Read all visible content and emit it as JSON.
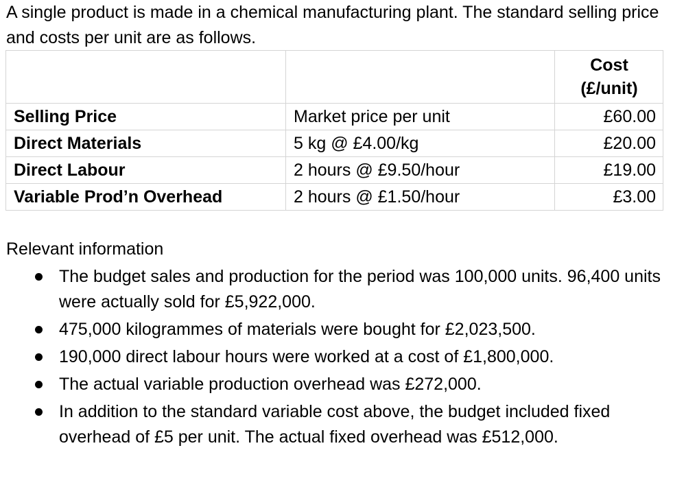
{
  "intro": "A single product is made in a chemical manufacturing plant.  The standard selling price and costs per unit are as follows.",
  "table": {
    "header": {
      "item": "",
      "description": "",
      "cost_line1": "Cost",
      "cost_line2": "(£/unit)"
    },
    "rows": [
      {
        "item": "Selling Price",
        "description": "Market price per unit",
        "cost": "£60.00"
      },
      {
        "item": "Direct Materials",
        "description": "5 kg @ £4.00/kg",
        "cost": "£20.00"
      },
      {
        "item": "Direct Labour",
        "description": "2 hours @ £9.50/hour",
        "cost": "£19.00"
      },
      {
        "item": "Variable Prod’n Overhead",
        "description": "2 hours @ £1.50/hour",
        "cost": "£3.00"
      }
    ]
  },
  "info": {
    "title": "Relevant information",
    "bullets": [
      "The budget sales and production for the period was 100,000 units. 96,400 units were actually sold for £5,922,000.",
      "475,000 kilogrammes of materials were bought for £2,023,500.",
      "190,000 direct labour hours were worked at a cost of £1,800,000.",
      "The actual variable production overhead was £272,000.",
      "In addition to the standard variable cost above, the budget included fixed overhead of £5 per unit. The actual fixed overhead was £512,000."
    ]
  }
}
